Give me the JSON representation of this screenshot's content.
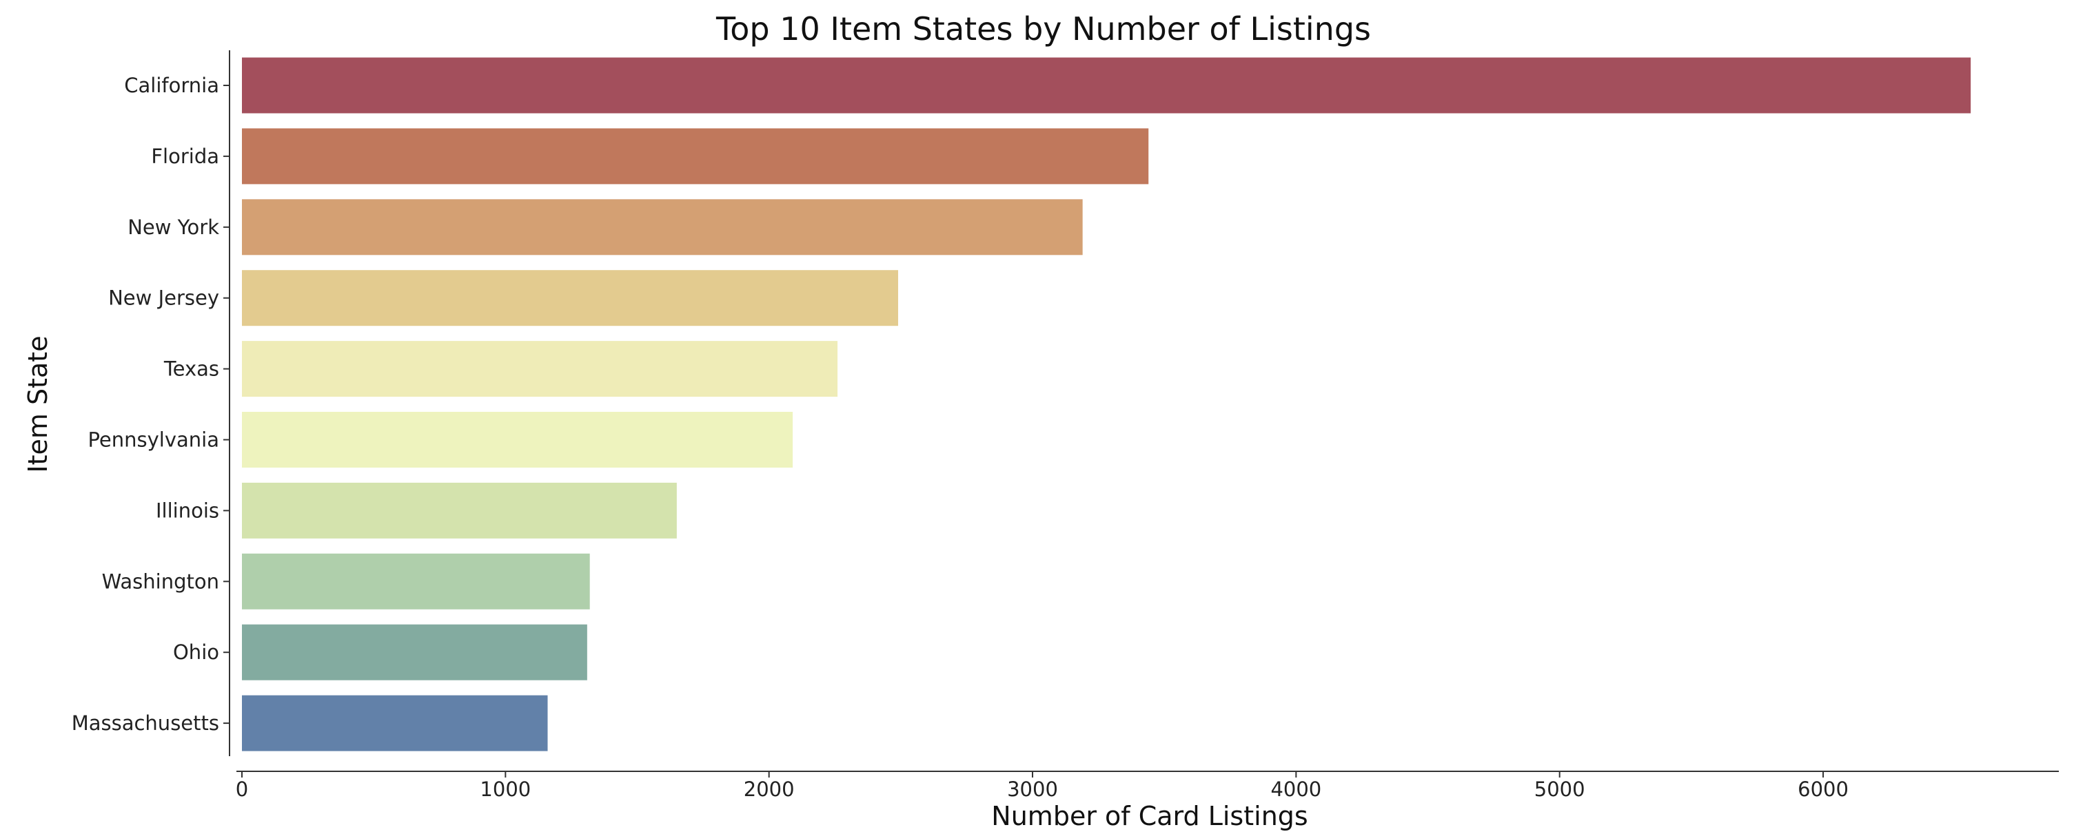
{
  "chart_data": {
    "type": "bar",
    "orientation": "horizontal",
    "title": "Top 10 Item States by Number of Listings",
    "xlabel": "Number of Card Listings",
    "ylabel": "Item State",
    "xlim": [
      0,
      6900
    ],
    "xticks": [
      0,
      1000,
      2000,
      3000,
      4000,
      5000,
      6000
    ],
    "xtick_labels": [
      "0",
      "1000",
      "2000",
      "3000",
      "4000",
      "5000",
      "6000"
    ],
    "grid": false,
    "categories": [
      "California",
      "Florida",
      "New York",
      "New Jersey",
      "Texas",
      "Pennsylvania",
      "Illinois",
      "Washington",
      "Ohio",
      "Massachusetts"
    ],
    "values": [
      6560,
      3440,
      3190,
      2490,
      2260,
      2090,
      1650,
      1320,
      1310,
      1160
    ],
    "colors": [
      "#a34f5c",
      "#c0785c",
      "#d4a073",
      "#e3cb8f",
      "#efecb7",
      "#eef3be",
      "#d4e3ad",
      "#afcfab",
      "#83aba0",
      "#6281a9"
    ]
  }
}
